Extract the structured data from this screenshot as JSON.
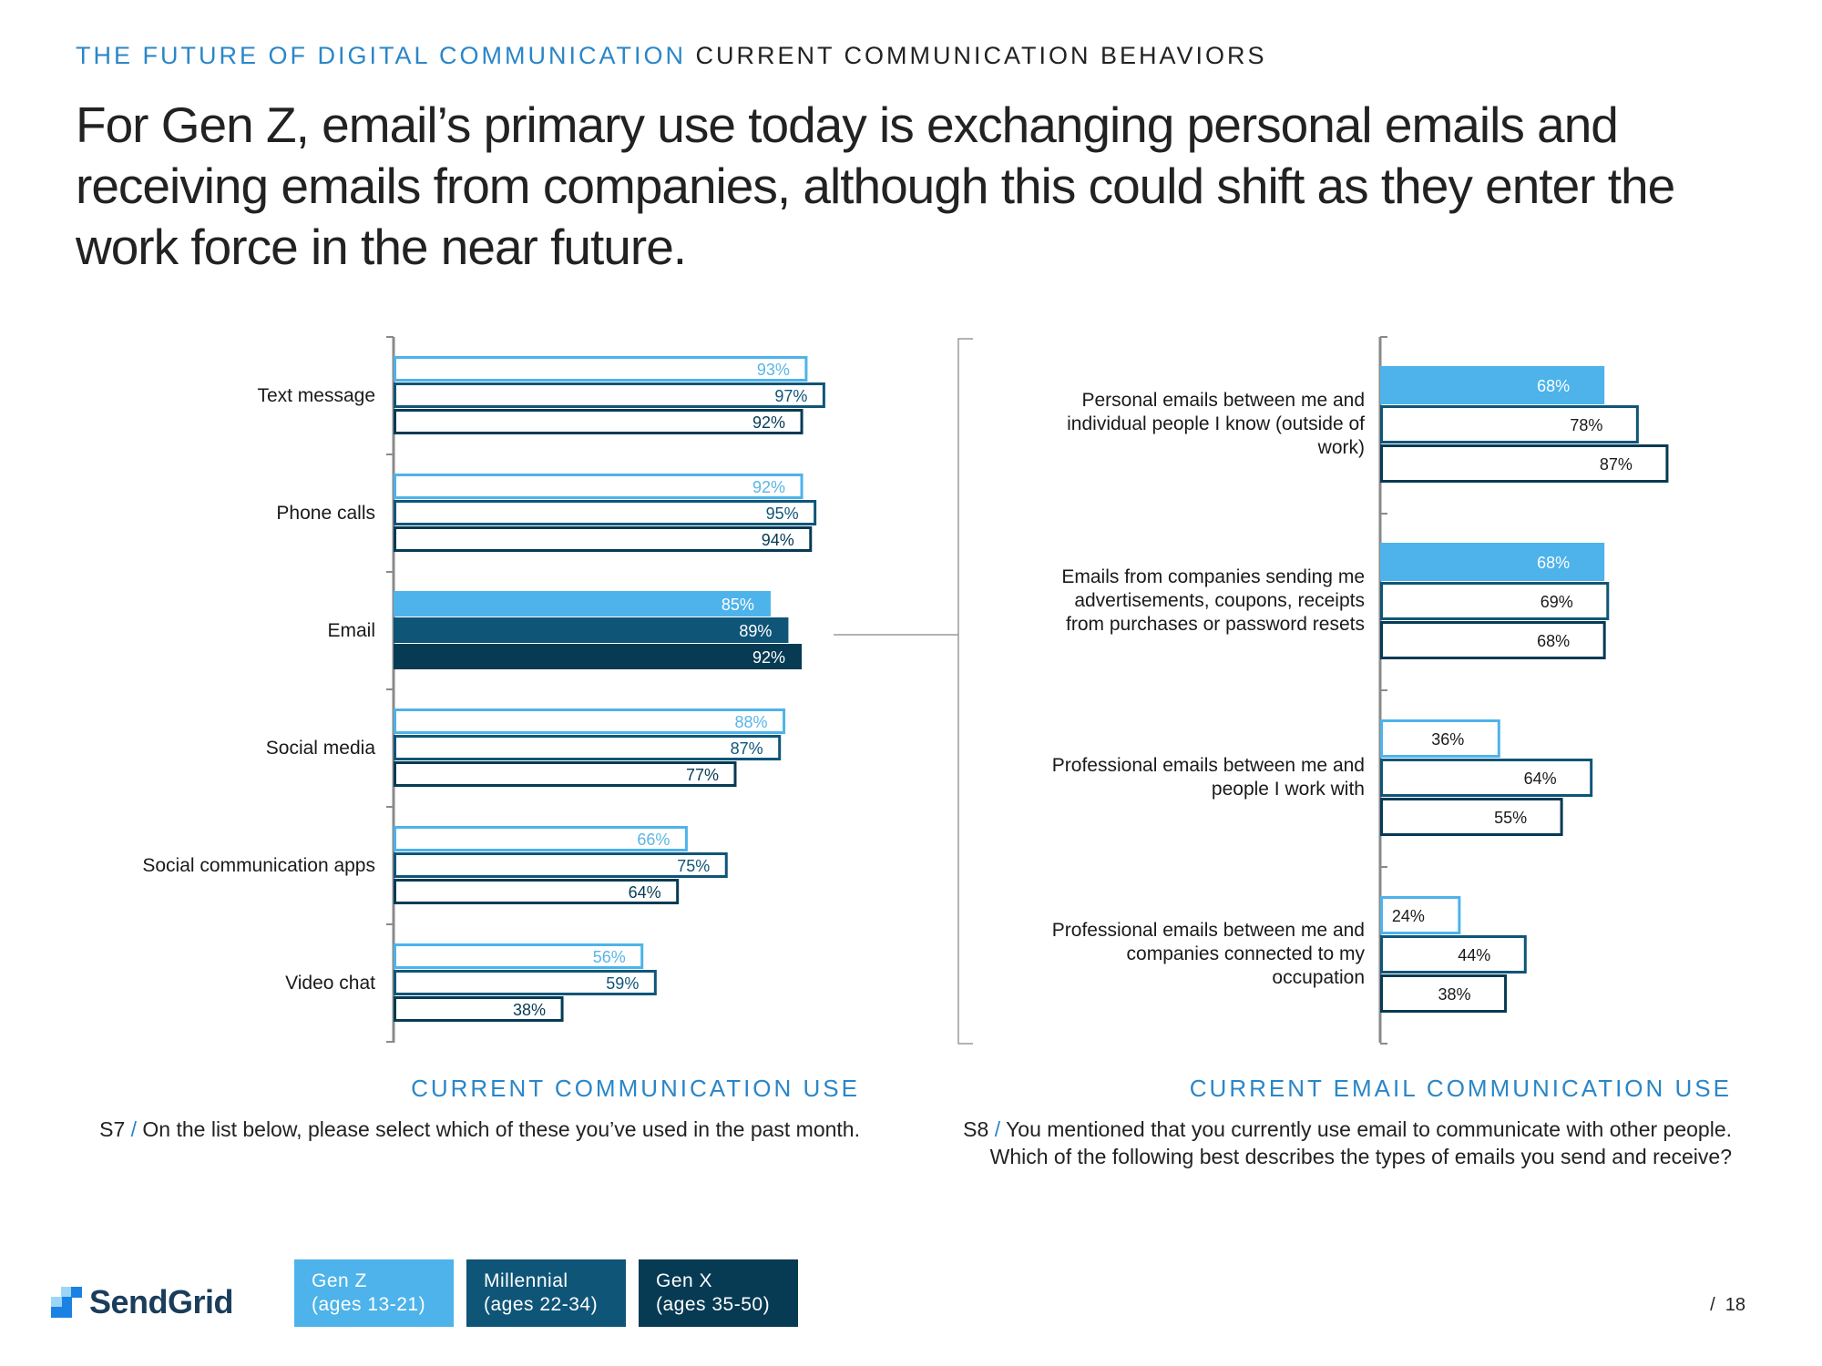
{
  "kicker": {
    "topic": "THE FUTURE OF DIGITAL COMMUNICATION",
    "section": "CURRENT COMMUNICATION BEHAVIORS"
  },
  "headline": {
    "lines": [
      "For Gen Z, email’s primary use today is exchanging personal emails and",
      "receiving emails from companies, although this could shift as they enter the",
      "work force in the near future."
    ]
  },
  "colors": {
    "gen_z": "#4db3ea",
    "millennial": "#0f5578",
    "gen_x": "#073a53",
    "axis": "#8a8a8a",
    "accent": "#2a86c8"
  },
  "legend": [
    {
      "name": "Gen Z",
      "sub": "(ages 13-21)",
      "color": "#4db3ea"
    },
    {
      "name": "Millennial",
      "sub": "(ages 22-34)",
      "color": "#0f5578"
    },
    {
      "name": "Gen X",
      "sub": "(ages 35-50)",
      "color": "#073a53"
    }
  ],
  "chart_data": [
    {
      "type": "bar",
      "orientation": "horizontal",
      "title": "CURRENT COMMUNICATION USE",
      "question_code": "S7",
      "question": "On the list below, please select which of these you’ve used in the past month.",
      "categories": [
        "Text message",
        "Phone calls",
        "Email",
        "Social media",
        "Social communication apps",
        "Video chat"
      ],
      "series": [
        {
          "name": "Gen Z",
          "values": [
            93,
            92,
            85,
            88,
            66,
            56
          ]
        },
        {
          "name": "Millennial",
          "values": [
            97,
            95,
            89,
            87,
            75,
            59
          ]
        },
        {
          "name": "Gen X",
          "values": [
            92,
            94,
            92,
            77,
            64,
            38
          ]
        }
      ],
      "highlight_category": "Email",
      "value_suffix": "%",
      "xlim": [
        0,
        100
      ]
    },
    {
      "type": "bar",
      "orientation": "horizontal",
      "title": "CURRENT EMAIL COMMUNICATION USE",
      "question_code": "S8",
      "question": "You mentioned that you currently use email to communicate with other people. Which of the following best describes the types of emails you send and receive?",
      "categories": [
        "Personal emails between me and individual people I know (outside of work)",
        "Emails from companies sending me advertisements, coupons, receipts from purchases or password resets",
        "Professional emails between me and people I work with",
        "Professional emails between me and companies connected to my occupation"
      ],
      "category_lines": [
        [
          "Personal emails between me and",
          "individual people I know (outside of",
          "work)"
        ],
        [
          "Emails from companies sending me",
          "advertisements, coupons, receipts",
          "from purchases or password resets"
        ],
        [
          "Professional emails between me and",
          "people I work with"
        ],
        [
          "Professional emails between me and",
          "companies connected to my",
          "occupation"
        ]
      ],
      "series": [
        {
          "name": "Gen Z",
          "values": [
            68,
            68,
            36,
            24
          ]
        },
        {
          "name": "Millennial",
          "values": [
            78,
            69,
            64,
            44
          ]
        },
        {
          "name": "Gen X",
          "values": [
            87,
            68,
            55,
            38
          ]
        }
      ],
      "value_suffix": "%",
      "xlim": [
        0,
        100
      ]
    }
  ],
  "footer": {
    "brand": "SendGrid",
    "page_number": "18"
  }
}
